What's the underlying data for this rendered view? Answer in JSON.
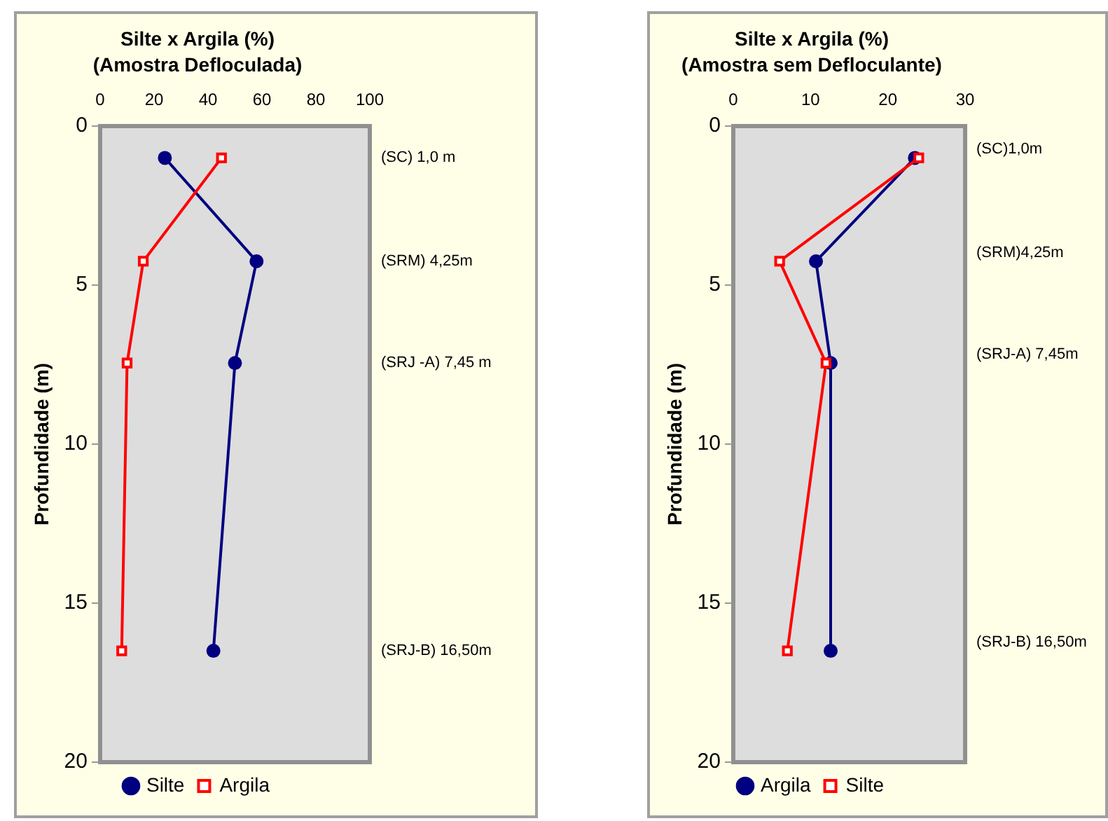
{
  "chart_data": [
    {
      "type": "line",
      "title": "Silte x Argila (%)",
      "subtitle": "(Amostra Defloculada)",
      "ylabel": "Profundidade (m)",
      "xlim": [
        0,
        100
      ],
      "xticks": [
        0,
        20,
        40,
        60,
        80,
        100
      ],
      "ylim": [
        20,
        0
      ],
      "yticks": [
        0,
        5,
        10,
        15,
        20
      ],
      "grid": false,
      "legend": "bottom",
      "series": [
        {
          "name": "Silte",
          "color": "#000080",
          "marker": "circle",
          "x": [
            24,
            58,
            50,
            42
          ],
          "values": [
            1.0,
            4.25,
            7.45,
            16.5
          ]
        },
        {
          "name": "Argila",
          "color": "#ff0000",
          "marker": "square",
          "x": [
            45,
            16,
            10,
            8
          ],
          "values": [
            1.0,
            4.25,
            7.45,
            16.5
          ]
        }
      ],
      "annotations": [
        "(SC) 1,0 m",
        "(SRM) 4,25m",
        "(SRJ -A) 7,45 m",
        "(SRJ-B) 16,50m"
      ]
    },
    {
      "type": "line",
      "title": "Silte x Argila (%)",
      "subtitle": "(Amostra sem Defloculante)",
      "ylabel": "Profundidade (m)",
      "xlim": [
        0,
        30
      ],
      "xticks": [
        0,
        10,
        20,
        30
      ],
      "ylim": [
        20,
        0
      ],
      "yticks": [
        0,
        5,
        10,
        15,
        20
      ],
      "grid": false,
      "legend": "bottom",
      "series": [
        {
          "name": "Argila",
          "color": "#000080",
          "marker": "circle",
          "x": [
            23.5,
            10.7,
            12.6,
            12.6
          ],
          "values": [
            1.0,
            4.25,
            7.45,
            16.5
          ]
        },
        {
          "name": "Silte",
          "color": "#ff0000",
          "marker": "square",
          "x": [
            24,
            6,
            12,
            7
          ],
          "values": [
            1.0,
            4.25,
            7.45,
            16.5
          ]
        }
      ],
      "annotations": [
        "(SC)1,0m",
        "(SRM)4,25m",
        "(SRJ-A) 7,45m",
        "(SRJ-B) 16,50m"
      ]
    }
  ]
}
